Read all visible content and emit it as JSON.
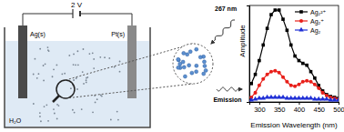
{
  "chart_data": {
    "type": "line",
    "xlabel": "Emission Wavelength (nm)",
    "ylabel": "Amplitude",
    "x": [
      280,
      290,
      300,
      310,
      320,
      330,
      340,
      350,
      360,
      370,
      380,
      390,
      400,
      410,
      420,
      430,
      440,
      450,
      460,
      470,
      480,
      490,
      500
    ],
    "series": [
      {
        "name": "Ag₂²⁺",
        "color": "#000000",
        "marker": "square",
        "values": [
          0.2,
          0.3,
          0.45,
          0.62,
          0.8,
          0.95,
          1.0,
          1.0,
          0.9,
          0.78,
          0.62,
          0.5,
          0.45,
          0.42,
          0.4,
          0.33,
          0.26,
          0.18,
          0.12,
          0.08,
          0.06,
          0.05,
          0.04
        ]
      },
      {
        "name": "Ag₂⁺",
        "color": "#e8201a",
        "marker": "circle",
        "values": [
          0.05,
          0.1,
          0.18,
          0.25,
          0.3,
          0.33,
          0.34,
          0.32,
          0.27,
          0.22,
          0.18,
          0.17,
          0.19,
          0.22,
          0.23,
          0.22,
          0.19,
          0.15,
          0.1,
          0.07,
          0.05,
          0.04,
          0.03
        ]
      },
      {
        "name": "Ag₂",
        "color": "#1f2fd6",
        "marker": "triangle",
        "values": [
          0.02,
          0.03,
          0.04,
          0.04,
          0.05,
          0.05,
          0.05,
          0.05,
          0.05,
          0.04,
          0.04,
          0.04,
          0.04,
          0.04,
          0.04,
          0.04,
          0.03,
          0.03,
          0.03,
          0.03,
          0.02,
          0.02,
          0.02
        ]
      }
    ],
    "xlim": [
      275,
      500
    ],
    "xticks": [
      300,
      350,
      400,
      450,
      500
    ],
    "ylim": [
      0,
      1.05
    ],
    "yticks": [],
    "tick_labels": "x",
    "legend": "top-right"
  },
  "diagram": {
    "voltage": "2 V",
    "anode": "Ag(s)",
    "cathode": "Pt(s)",
    "solvent": "H₂O",
    "excitation": "267 nm",
    "emission": "Emission"
  }
}
